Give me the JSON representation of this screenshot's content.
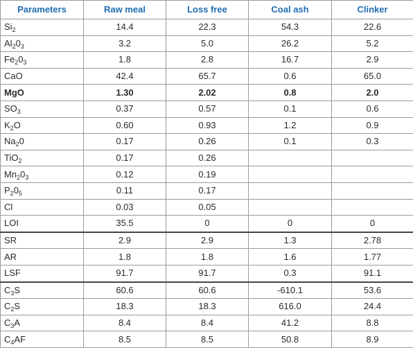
{
  "headers": [
    "Parameters",
    "Raw meal",
    "Loss free",
    "Coal ash",
    "Clinker"
  ],
  "rows": [
    {
      "param": [
        [
          "Si",
          ""
        ],
        [
          "2",
          "sub"
        ]
      ],
      "values": [
        "14.4",
        "22.3",
        "54.3",
        "22.6"
      ]
    },
    {
      "param": [
        [
          "Al",
          ""
        ],
        [
          "2",
          "sub"
        ],
        [
          "0",
          ""
        ],
        [
          "3",
          "sub"
        ]
      ],
      "values": [
        "3.2",
        "5.0",
        "26.2",
        "5.2"
      ]
    },
    {
      "param": [
        [
          "Fe",
          ""
        ],
        [
          "2",
          "sub"
        ],
        [
          "0",
          ""
        ],
        [
          "3",
          "sub"
        ]
      ],
      "values": [
        "1.8",
        "2.8",
        "16.7",
        "2.9"
      ]
    },
    {
      "param": [
        [
          "CaO",
          ""
        ]
      ],
      "values": [
        "42.4",
        "65.7",
        "0.6",
        "65.0"
      ]
    },
    {
      "param": [
        [
          "MgO",
          ""
        ]
      ],
      "values": [
        "1.30",
        "2.02",
        "0.8",
        "2.0"
      ],
      "bold": true
    },
    {
      "param": [
        [
          "SO",
          ""
        ],
        [
          "3",
          "sub"
        ]
      ],
      "values": [
        "0.37",
        "0.57",
        "0.1",
        "0.6"
      ]
    },
    {
      "param": [
        [
          "K",
          ""
        ],
        [
          "2",
          "sub"
        ],
        [
          "O",
          ""
        ]
      ],
      "values": [
        "0.60",
        "0.93",
        "1.2",
        "0.9"
      ]
    },
    {
      "param": [
        [
          "Na",
          ""
        ],
        [
          "2",
          "sub"
        ],
        [
          "0",
          ""
        ]
      ],
      "values": [
        "0.17",
        "0.26",
        "0.1",
        "0.3"
      ]
    },
    {
      "param": [
        [
          "TiO",
          ""
        ],
        [
          "2",
          "sub"
        ]
      ],
      "values": [
        "0.17",
        "0.26",
        "",
        ""
      ]
    },
    {
      "param": [
        [
          "Mn",
          ""
        ],
        [
          "2",
          "sub"
        ],
        [
          "0",
          ""
        ],
        [
          "3",
          "sub"
        ]
      ],
      "values": [
        "0.12",
        "0.19",
        "",
        ""
      ]
    },
    {
      "param": [
        [
          "P",
          ""
        ],
        [
          "2",
          "sub"
        ],
        [
          "0",
          ""
        ],
        [
          "5",
          "sub"
        ]
      ],
      "values": [
        "0.11",
        "0.17",
        "",
        ""
      ]
    },
    {
      "param": [
        [
          "Cl",
          ""
        ]
      ],
      "values": [
        "0.03",
        "0.05",
        "",
        ""
      ]
    },
    {
      "param": [
        [
          "LOI",
          ""
        ]
      ],
      "values": [
        "35.5",
        "0",
        "0",
        "0"
      ]
    },
    {
      "param": [
        [
          "SR",
          ""
        ]
      ],
      "values": [
        "2.9",
        "2.9",
        "1.3",
        "2.78"
      ],
      "group_start": true
    },
    {
      "param": [
        [
          "AR",
          ""
        ]
      ],
      "values": [
        "1.8",
        "1.8",
        "1.6",
        "1.77"
      ]
    },
    {
      "param": [
        [
          "LSF",
          ""
        ]
      ],
      "values": [
        "91.7",
        "91.7",
        "0.3",
        "91.1"
      ]
    },
    {
      "param": [
        [
          "C",
          ""
        ],
        [
          "3",
          "sub"
        ],
        [
          "S",
          ""
        ]
      ],
      "values": [
        "60.6",
        "60.6",
        "-610.1",
        "53.6"
      ],
      "group_start": true
    },
    {
      "param": [
        [
          "C",
          ""
        ],
        [
          "2",
          "sub"
        ],
        [
          "S",
          ""
        ]
      ],
      "values": [
        "18.3",
        "18.3",
        "616.0",
        "24.4"
      ]
    },
    {
      "param": [
        [
          "C",
          ""
        ],
        [
          "3",
          "sub"
        ],
        [
          "A",
          ""
        ]
      ],
      "values": [
        "8.4",
        "8.4",
        "41.2",
        "8.8"
      ]
    },
    {
      "param": [
        [
          "C",
          ""
        ],
        [
          "4",
          "sub"
        ],
        [
          "AF",
          ""
        ]
      ],
      "values": [
        "8.5",
        "8.5",
        "50.8",
        "8.9"
      ]
    }
  ],
  "colors": {
    "header_text": "#1f6db3",
    "grid": "#9a9a9a",
    "group_rule": "#444444"
  }
}
